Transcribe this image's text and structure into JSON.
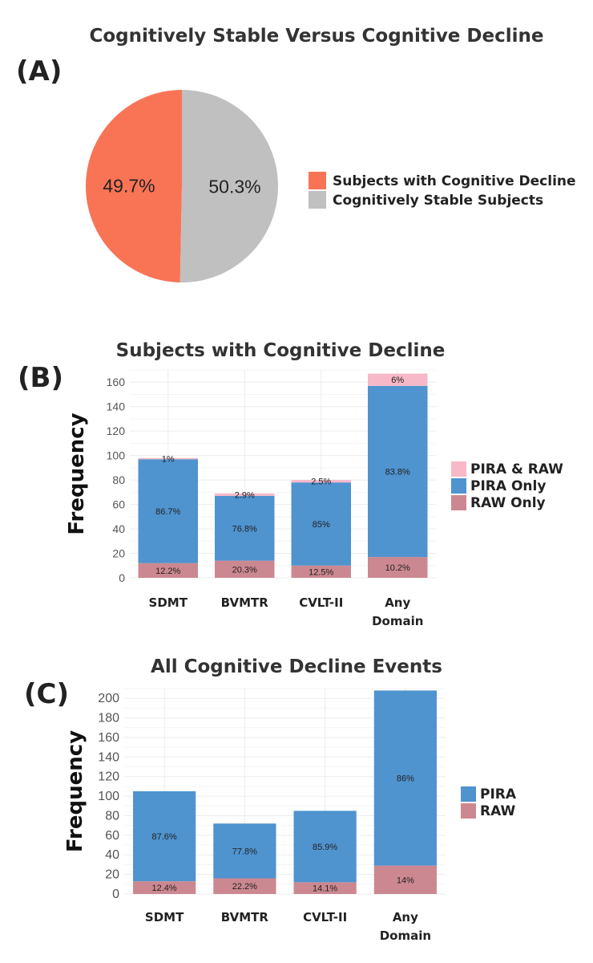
{
  "colors": {
    "decline": "#f97455",
    "stable": "#c0c0c0",
    "pira_raw": "#f7b8c8",
    "pira": "#4f93cf",
    "raw": "#cc8890"
  },
  "chart_data": [
    {
      "panel": "(A)",
      "type": "pie",
      "title": "Cognitively Stable Versus Cognitive Decline",
      "slices": [
        {
          "name": "Subjects with Cognitive Decline",
          "value": 49.7,
          "label": "49.7%",
          "color": "#f97455"
        },
        {
          "name": "Cognitively Stable Subjects",
          "value": 50.3,
          "label": "50.3%",
          "color": "#c0c0c0"
        }
      ],
      "legend": [
        "Subjects with Cognitive Decline",
        "Cognitively Stable Subjects"
      ],
      "legend_position": "right"
    },
    {
      "panel": "(B)",
      "type": "bar",
      "stacked": true,
      "title": "Subjects with Cognitive Decline",
      "ylabel": "Frequency",
      "ylim": [
        0,
        170
      ],
      "yticks": [
        0,
        20,
        40,
        60,
        80,
        100,
        120,
        140,
        160
      ],
      "categories": [
        [
          "SDMT"
        ],
        [
          "BVMTR"
        ],
        [
          "CVLT-II"
        ],
        [
          "Any",
          "Domain"
        ]
      ],
      "series": [
        {
          "name": "RAW Only",
          "color": "#cc8890",
          "values": [
            12,
            14,
            10,
            17
          ],
          "labels": [
            "12.2%",
            "20.3%",
            "12.5%",
            "10.2%"
          ]
        },
        {
          "name": "PIRA Only",
          "color": "#4f93cf",
          "values": [
            85,
            53,
            68,
            140
          ],
          "labels": [
            "86.7%",
            "76.8%",
            "85%",
            "83.8%"
          ]
        },
        {
          "name": "PIRA & RAW",
          "color": "#f7b8c8",
          "values": [
            1,
            2,
            2,
            10
          ],
          "labels": [
            "1%",
            "2.9%",
            "2.5%",
            "6%"
          ]
        }
      ],
      "legend": [
        "PIRA & RAW",
        "PIRA Only",
        "RAW Only"
      ],
      "legend_position": "right"
    },
    {
      "panel": "(C)",
      "type": "bar",
      "stacked": true,
      "title": "All Cognitive Decline Events",
      "ylabel": "Frequency",
      "ylim": [
        0,
        210
      ],
      "yticks": [
        0,
        20,
        40,
        60,
        80,
        100,
        120,
        140,
        160,
        180,
        200
      ],
      "categories": [
        [
          "SDMT"
        ],
        [
          "BVMTR"
        ],
        [
          "CVLT-II"
        ],
        [
          "Any",
          "Domain"
        ]
      ],
      "series": [
        {
          "name": "RAW",
          "color": "#cc8890",
          "values": [
            13,
            16,
            12,
            29
          ],
          "labels": [
            "12.4%",
            "22.2%",
            "14.1%",
            "14%"
          ]
        },
        {
          "name": "PIRA",
          "color": "#4f93cf",
          "values": [
            92,
            56,
            73,
            179
          ],
          "labels": [
            "87.6%",
            "77.8%",
            "85.9%",
            "86%"
          ]
        }
      ],
      "legend": [
        "PIRA",
        "RAW"
      ],
      "legend_position": "right"
    }
  ]
}
